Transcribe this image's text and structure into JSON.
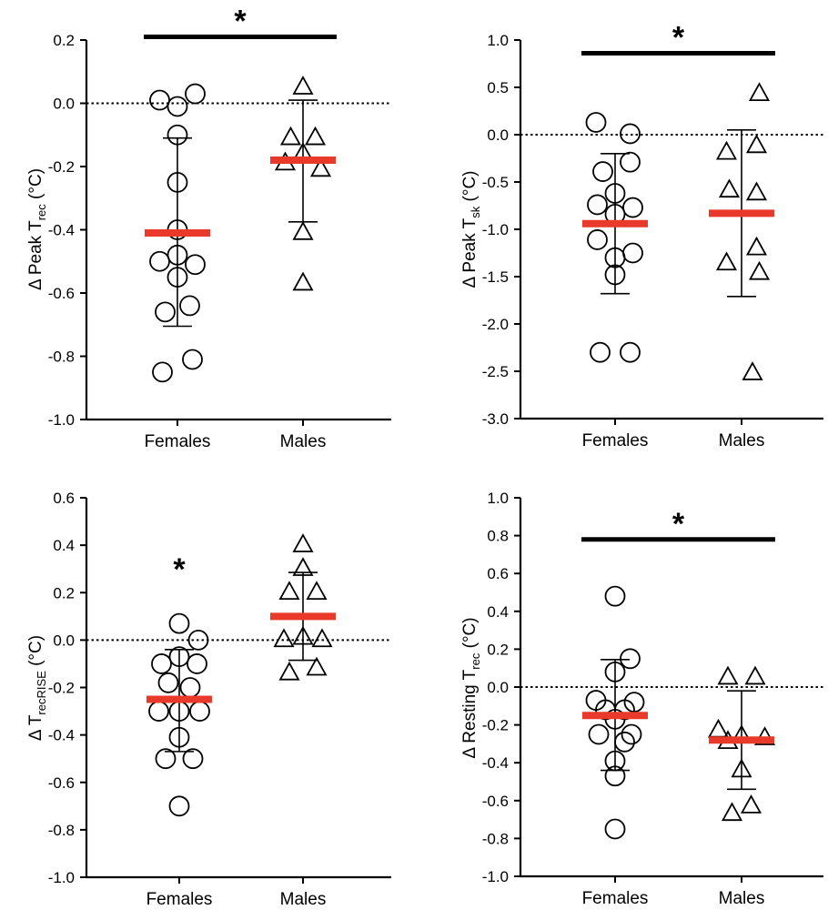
{
  "colors": {
    "mean_bar": "#e8392b",
    "marker_stroke": "#000000",
    "sig_bar": "#000000",
    "zero_line": "#000000"
  },
  "chart_data": [
    {
      "type": "scatter",
      "ylabel_main": "Δ Peak T",
      "ylabel_sub": "rec",
      "ylabel_suffix": " (°C)",
      "ylim": [
        -1.0,
        0.2
      ],
      "yticks": [
        0.2,
        0.0,
        -0.2,
        -0.4,
        -0.6,
        -0.8,
        -1.0
      ],
      "ytick_labels": [
        "0.2",
        "0.0",
        "-0.2",
        "-0.4",
        "-0.6",
        "-0.8",
        "-1.0"
      ],
      "categories": [
        "Females",
        "Males"
      ],
      "series": [
        {
          "marker": "circle",
          "points": [
            [
              -0.13,
              0.01
            ],
            [
              0.0,
              -0.01
            ],
            [
              0.13,
              0.03
            ],
            [
              0.0,
              -0.1
            ],
            [
              0.0,
              -0.25
            ],
            [
              0.0,
              -0.4
            ],
            [
              0.0,
              -0.48
            ],
            [
              -0.13,
              -0.5
            ],
            [
              0.13,
              -0.51
            ],
            [
              0.0,
              -0.55
            ],
            [
              0.09,
              -0.64
            ],
            [
              -0.09,
              -0.66
            ],
            [
              -0.11,
              -0.85
            ],
            [
              0.11,
              -0.81
            ]
          ],
          "mean": -0.41,
          "sd_upper": -0.11,
          "sd_lower": -0.705
        },
        {
          "marker": "triangle",
          "points": [
            [
              0.0,
              0.05
            ],
            [
              -0.09,
              -0.11
            ],
            [
              0.09,
              -0.11
            ],
            [
              0.0,
              -0.16
            ],
            [
              -0.13,
              -0.19
            ],
            [
              0.13,
              -0.21
            ],
            [
              0.0,
              -0.41
            ],
            [
              0.0,
              -0.57
            ]
          ],
          "mean": -0.18,
          "sd_upper": 0.01,
          "sd_lower": -0.375
        }
      ],
      "significance": {
        "type": "bar",
        "from": 0,
        "to": 1,
        "y": 0.21,
        "label": "*"
      }
    },
    {
      "type": "scatter",
      "ylabel_main": "Δ Peak T",
      "ylabel_sub": "sk",
      "ylabel_suffix": " (°C)",
      "ylim": [
        -3.0,
        1.0
      ],
      "yticks": [
        1.0,
        0.5,
        0.0,
        -0.5,
        -1.0,
        -1.5,
        -2.0,
        -2.5,
        -3.0
      ],
      "ytick_labels": [
        "1.0",
        "0.5",
        "0.0",
        "-0.5",
        "-1.0",
        "-1.5",
        "-2.0",
        "-2.5",
        "-3.0"
      ],
      "categories": [
        "Females",
        "Males"
      ],
      "series": [
        {
          "marker": "circle",
          "points": [
            [
              -0.14,
              0.13
            ],
            [
              0.11,
              0.01
            ],
            [
              -0.09,
              -0.39
            ],
            [
              0.11,
              -0.29
            ],
            [
              0.0,
              -0.62
            ],
            [
              -0.13,
              -0.74
            ],
            [
              0.13,
              -0.77
            ],
            [
              0.0,
              -0.84
            ],
            [
              -0.13,
              -1.11
            ],
            [
              0.13,
              -1.25
            ],
            [
              0.0,
              -1.3
            ],
            [
              0.0,
              -1.48
            ],
            [
              -0.11,
              -2.3
            ],
            [
              0.11,
              -2.3
            ]
          ],
          "mean": -0.94,
          "sd_upper": -0.2,
          "sd_lower": -1.68
        },
        {
          "marker": "triangle",
          "points": [
            [
              0.13,
              0.43
            ],
            [
              -0.11,
              -0.19
            ],
            [
              0.11,
              -0.12
            ],
            [
              -0.09,
              -0.59
            ],
            [
              0.11,
              -0.62
            ],
            [
              0.11,
              -1.2
            ],
            [
              -0.11,
              -1.36
            ],
            [
              0.13,
              -1.46
            ],
            [
              0.08,
              -2.52
            ]
          ],
          "mean": -0.83,
          "sd_upper": 0.05,
          "sd_lower": -1.71
        }
      ],
      "significance": {
        "type": "bar",
        "from": 0,
        "to": 1,
        "y": 0.86,
        "label": "*"
      }
    },
    {
      "type": "scatter",
      "ylabel_main": "Δ T",
      "ylabel_sub": "recRISE",
      "ylabel_suffix": " (°C)",
      "ylim": [
        -1.0,
        0.6
      ],
      "yticks": [
        0.6,
        0.4,
        0.2,
        0.0,
        -0.2,
        -0.4,
        -0.6,
        -0.8,
        -1.0
      ],
      "ytick_labels": [
        "0.6",
        "0.4",
        "0.2",
        "0.0",
        "-0.2",
        "-0.4",
        "-0.6",
        "-0.8",
        "-1.0"
      ],
      "categories": [
        "Females",
        "Males"
      ],
      "series": [
        {
          "marker": "circle",
          "points": [
            [
              0.0,
              0.07
            ],
            [
              0.14,
              0.0
            ],
            [
              0.0,
              -0.07
            ],
            [
              -0.13,
              -0.1
            ],
            [
              0.13,
              -0.1
            ],
            [
              -0.08,
              -0.18
            ],
            [
              0.08,
              -0.2
            ],
            [
              -0.15,
              -0.3
            ],
            [
              0.15,
              -0.3
            ],
            [
              0.0,
              -0.3
            ],
            [
              0.0,
              -0.41
            ],
            [
              -0.1,
              -0.5
            ],
            [
              0.1,
              -0.5
            ],
            [
              0.0,
              -0.7
            ]
          ],
          "mean": -0.25,
          "sd_upper": -0.04,
          "sd_lower": -0.47
        },
        {
          "marker": "triangle",
          "points": [
            [
              0.0,
              0.4
            ],
            [
              0.0,
              0.3
            ],
            [
              -0.1,
              0.2
            ],
            [
              0.1,
              0.2
            ],
            [
              -0.14,
              0.0
            ],
            [
              0.0,
              0.01
            ],
            [
              0.14,
              0.0
            ],
            [
              -0.1,
              -0.14
            ],
            [
              0.1,
              -0.12
            ]
          ],
          "mean": 0.1,
          "sd_upper": 0.285,
          "sd_lower": -0.085
        }
      ],
      "significance": {
        "type": "star",
        "group": 0,
        "y": 0.34,
        "label": "*"
      }
    },
    {
      "type": "scatter",
      "ylabel_main": "Δ Resting T",
      "ylabel_sub": "rec",
      "ylabel_suffix": " (°C)",
      "ylim": [
        -1.0,
        1.0
      ],
      "yticks": [
        1.0,
        0.8,
        0.6,
        0.4,
        0.2,
        0.0,
        -0.2,
        -0.4,
        -0.6,
        -0.8,
        -1.0
      ],
      "ytick_labels": [
        "1.0",
        "0.8",
        "0.6",
        "0.4",
        "0.2",
        "0.0",
        "-0.2",
        "-0.4",
        "-0.6",
        "-0.8",
        "-1.0"
      ],
      "categories": [
        "Females",
        "Males"
      ],
      "series": [
        {
          "marker": "circle",
          "points": [
            [
              0.0,
              0.48
            ],
            [
              0.11,
              0.15
            ],
            [
              0.0,
              0.08
            ],
            [
              -0.14,
              -0.07
            ],
            [
              0.14,
              -0.08
            ],
            [
              0.07,
              -0.12
            ],
            [
              -0.07,
              -0.12
            ],
            [
              0.0,
              -0.17
            ],
            [
              -0.12,
              -0.25
            ],
            [
              0.12,
              -0.25
            ],
            [
              0.07,
              -0.29
            ],
            [
              0.0,
              -0.39
            ],
            [
              0.0,
              -0.47
            ],
            [
              0.0,
              -0.75
            ]
          ],
          "mean": -0.15,
          "sd_upper": 0.145,
          "sd_lower": -0.44
        },
        {
          "marker": "triangle",
          "points": [
            [
              -0.1,
              0.05
            ],
            [
              0.1,
              0.05
            ],
            [
              -0.17,
              -0.23
            ],
            [
              0.0,
              -0.26
            ],
            [
              0.17,
              -0.27
            ],
            [
              -0.1,
              -0.29
            ],
            [
              0.0,
              -0.44
            ],
            [
              0.07,
              -0.63
            ],
            [
              -0.07,
              -0.67
            ]
          ],
          "mean": -0.28,
          "sd_upper": -0.02,
          "sd_lower": -0.54
        }
      ],
      "significance": {
        "type": "bar",
        "from": 0,
        "to": 1,
        "y": 0.78,
        "label": "*"
      }
    }
  ]
}
